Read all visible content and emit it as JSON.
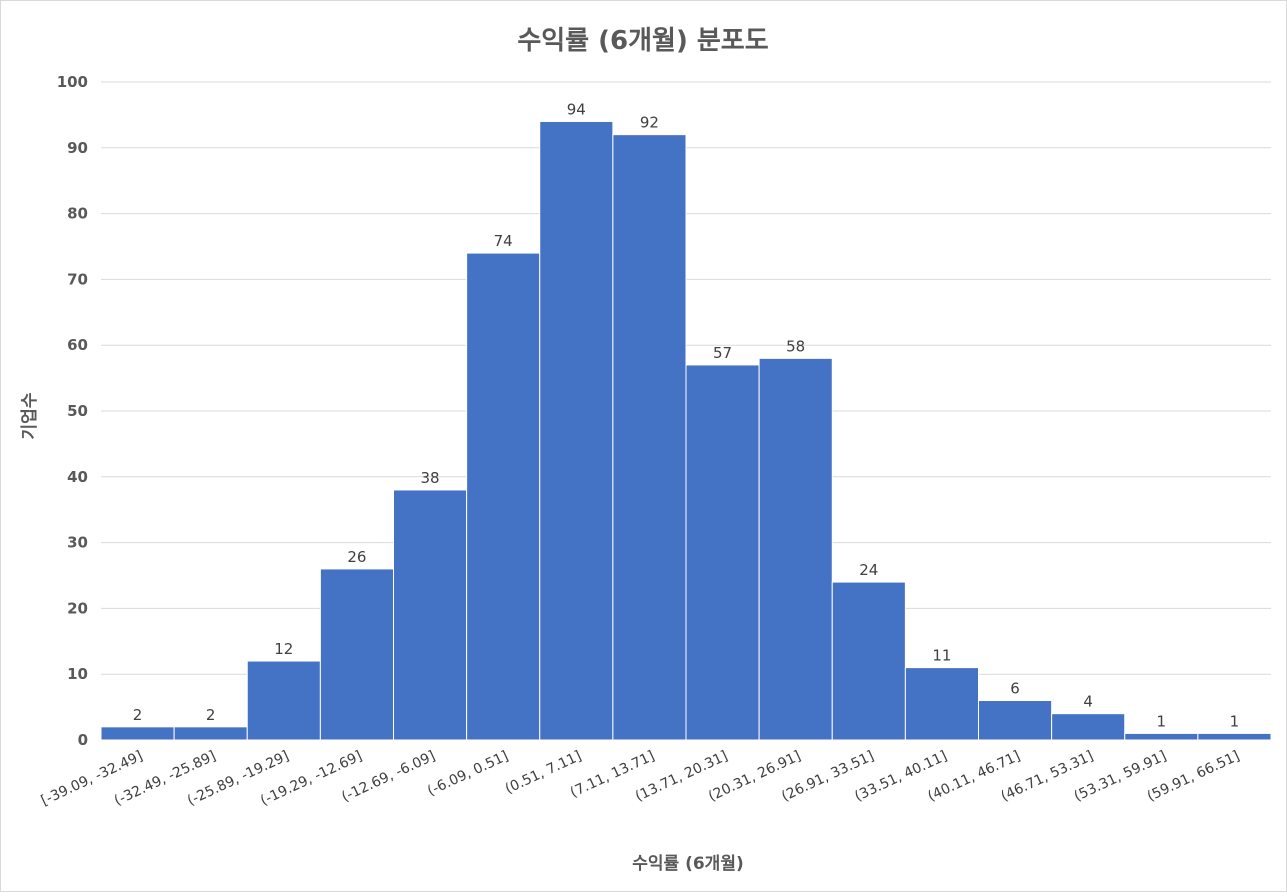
{
  "chart_data": {
    "type": "bar",
    "title": "수익률 (6개월) 분포도",
    "xlabel": "수익률 (6개월)",
    "ylabel": "기업수",
    "ylim": [
      0,
      100
    ],
    "yticks": [
      0,
      10,
      20,
      30,
      40,
      50,
      60,
      70,
      80,
      90,
      100
    ],
    "grid": true,
    "legend": "none",
    "color": "#4472c4",
    "categories": [
      "[-39.09, -32.49]",
      "(-32.49, -25.89]",
      "(-25.89, -19.29]",
      "(-19.29, -12.69]",
      "(-12.69, -6.09]",
      "(-6.09, 0.51]",
      "(0.51, 7.11]",
      "(7.11, 13.71]",
      "(13.71, 20.31]",
      "(20.31, 26.91]",
      "(26.91, 33.51]",
      "(33.51, 40.11]",
      "(40.11, 46.71]",
      "(46.71, 53.31]",
      "(53.31, 59.91]",
      "(59.91, 66.51]"
    ],
    "values": [
      2,
      2,
      12,
      26,
      38,
      74,
      94,
      92,
      57,
      58,
      24,
      11,
      6,
      4,
      1,
      1
    ]
  }
}
